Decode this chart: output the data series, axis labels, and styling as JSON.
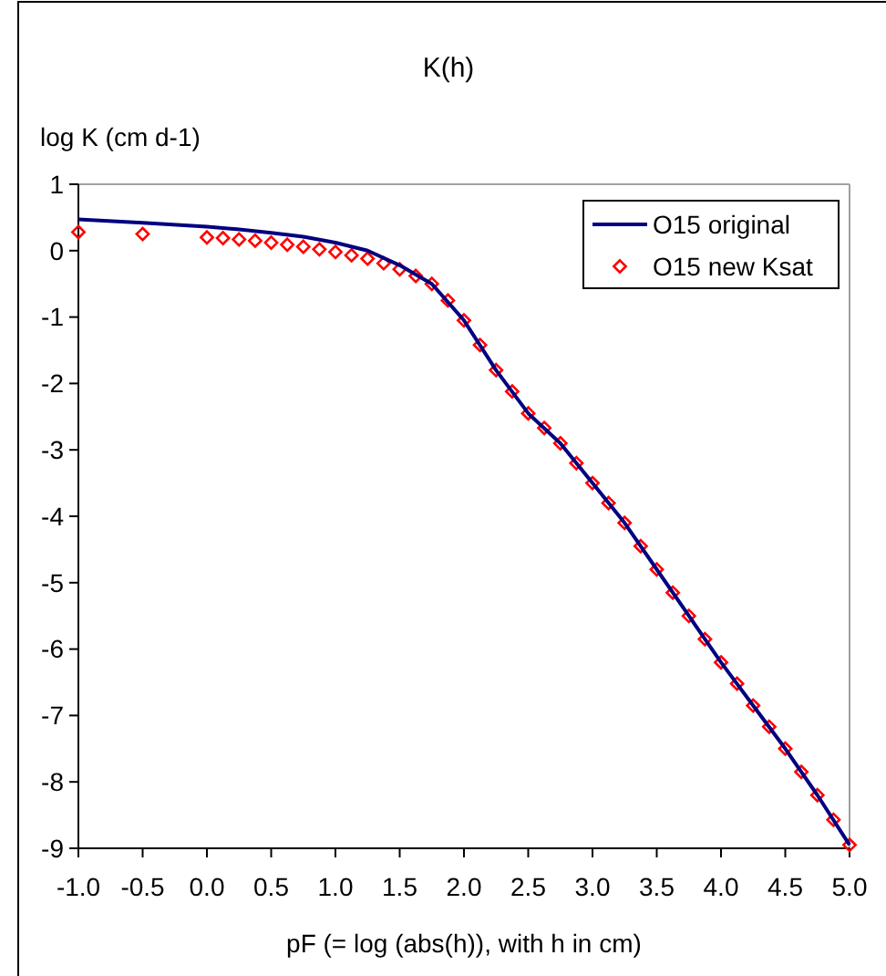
{
  "chart_data": {
    "type": "line",
    "title": "K(h)",
    "xlabel": "pF (= log (abs(h)), with h in cm)",
    "ylabel": "log K (cm d-1)",
    "xlim": [
      -1,
      5
    ],
    "ylim": [
      -9,
      1
    ],
    "xticks": [
      {
        "value": -1,
        "label": "-1.0"
      },
      {
        "value": -0.5,
        "label": "-0.5"
      },
      {
        "value": 0,
        "label": "0.0"
      },
      {
        "value": 0.5,
        "label": "0.5"
      },
      {
        "value": 1,
        "label": "1.0"
      },
      {
        "value": 1.5,
        "label": "1.5"
      },
      {
        "value": 2,
        "label": "2.0"
      },
      {
        "value": 2.5,
        "label": "2.5"
      },
      {
        "value": 3,
        "label": "3.0"
      },
      {
        "value": 3.5,
        "label": "3.5"
      },
      {
        "value": 4,
        "label": "4.0"
      },
      {
        "value": 4.5,
        "label": "4.5"
      },
      {
        "value": 5,
        "label": "5.0"
      }
    ],
    "yticks": [
      1,
      0,
      -1,
      -2,
      -3,
      -4,
      -5,
      -6,
      -7,
      -8,
      -9
    ],
    "grid": false,
    "legend": "top right",
    "series": [
      {
        "name": "O15 original",
        "color": "#000080",
        "marker": "none",
        "line_style": "solid",
        "x": [
          -1,
          -0.5,
          0,
          0.25,
          0.5,
          0.75,
          1,
          1.25,
          1.5,
          1.75,
          2,
          2.25,
          2.5,
          2.75,
          3,
          3.25,
          3.5,
          3.75,
          4,
          4.25,
          4.5,
          4.75,
          5
        ],
        "values": [
          0.47,
          0.42,
          0.36,
          0.32,
          0.27,
          0.21,
          0.12,
          0,
          -0.22,
          -0.5,
          -1.05,
          -1.8,
          -2.45,
          -2.9,
          -3.5,
          -4.1,
          -4.8,
          -5.5,
          -6.2,
          -6.85,
          -7.5,
          -8.2,
          -8.95
        ]
      },
      {
        "name": "O15 new Ksat",
        "type": "scatter",
        "color": "#ff0000",
        "marker": "diamond",
        "x": [
          -1,
          -0.5,
          0,
          0.125,
          0.25,
          0.375,
          0.5,
          0.625,
          0.75,
          0.875,
          1,
          1.125,
          1.25,
          1.375,
          1.5,
          1.625,
          1.75,
          1.875,
          2,
          2.125,
          2.25,
          2.375,
          2.5,
          2.625,
          2.75,
          2.875,
          3,
          3.125,
          3.25,
          3.375,
          3.5,
          3.625,
          3.75,
          3.875,
          4,
          4.125,
          4.25,
          4.375,
          4.5,
          4.625,
          4.75,
          4.875,
          5
        ],
        "values": [
          0.28,
          0.25,
          0.2,
          0.19,
          0.17,
          0.15,
          0.12,
          0.09,
          0.06,
          0.02,
          -0.02,
          -0.07,
          -0.12,
          -0.19,
          -0.28,
          -0.38,
          -0.5,
          -0.75,
          -1.05,
          -1.42,
          -1.8,
          -2.12,
          -2.45,
          -2.67,
          -2.9,
          -3.2,
          -3.5,
          -3.8,
          -4.1,
          -4.45,
          -4.8,
          -5.15,
          -5.5,
          -5.85,
          -6.2,
          -6.52,
          -6.85,
          -7.17,
          -7.5,
          -7.85,
          -8.2,
          -8.57,
          -8.95
        ]
      }
    ]
  }
}
